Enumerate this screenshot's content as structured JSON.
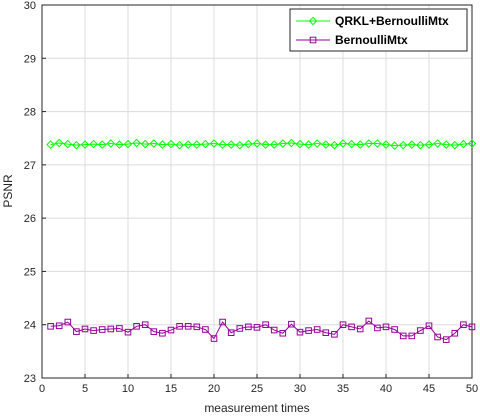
{
  "chart_data": {
    "type": "line",
    "title": "",
    "xlabel": "measurement times",
    "ylabel": "PSNR",
    "xlim": [
      0,
      50
    ],
    "ylim": [
      23,
      30
    ],
    "xticks": [
      0,
      5,
      10,
      15,
      20,
      25,
      30,
      35,
      40,
      45,
      50
    ],
    "yticks": [
      23,
      24,
      25,
      26,
      27,
      28,
      29,
      30
    ],
    "grid": true,
    "legend_position": "top-right",
    "x": [
      1,
      2,
      3,
      4,
      5,
      6,
      7,
      8,
      9,
      10,
      11,
      12,
      13,
      14,
      15,
      16,
      17,
      18,
      19,
      20,
      21,
      22,
      23,
      24,
      25,
      26,
      27,
      28,
      29,
      30,
      31,
      32,
      33,
      34,
      35,
      36,
      37,
      38,
      39,
      40,
      41,
      42,
      43,
      44,
      45,
      46,
      47,
      48,
      49,
      50
    ],
    "series": [
      {
        "name": "QRKL+BernoulliMtx",
        "color": "#00ff00",
        "marker": "diamond",
        "values": [
          27.38,
          27.41,
          27.39,
          27.37,
          27.38,
          27.39,
          27.38,
          27.4,
          27.38,
          27.39,
          27.41,
          27.39,
          27.4,
          27.38,
          27.39,
          27.37,
          27.38,
          27.38,
          27.39,
          27.4,
          27.38,
          27.38,
          27.37,
          27.39,
          27.4,
          27.38,
          27.38,
          27.4,
          27.41,
          27.39,
          27.38,
          27.4,
          27.38,
          27.37,
          27.4,
          27.39,
          27.38,
          27.4,
          27.4,
          27.38,
          27.36,
          27.37,
          27.38,
          27.37,
          27.38,
          27.4,
          27.38,
          27.37,
          27.39,
          27.4
        ]
      },
      {
        "name": "BernoulliMtx",
        "color": "#990099",
        "marker": "square",
        "values": [
          23.97,
          23.98,
          24.05,
          23.87,
          23.92,
          23.89,
          23.91,
          23.92,
          23.93,
          23.86,
          23.97,
          24.0,
          23.87,
          23.84,
          23.9,
          23.97,
          23.97,
          23.96,
          23.91,
          23.74,
          24.05,
          23.85,
          23.93,
          23.96,
          23.95,
          24.0,
          23.9,
          23.84,
          24.01,
          23.86,
          23.89,
          23.91,
          23.85,
          23.82,
          24.0,
          23.96,
          23.92,
          24.07,
          23.94,
          23.96,
          23.91,
          23.79,
          23.79,
          23.89,
          23.98,
          23.77,
          23.72,
          23.84,
          24.0,
          23.96
        ]
      }
    ]
  }
}
